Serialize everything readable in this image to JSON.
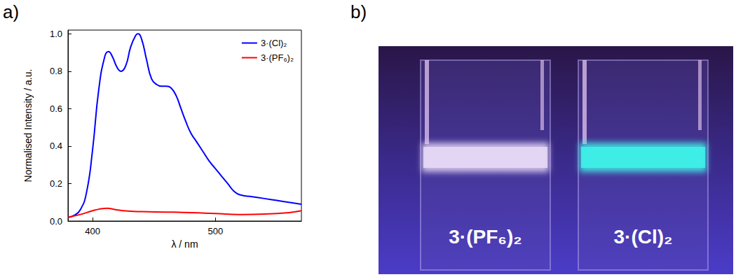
{
  "chart_data": {
    "type": "line",
    "panel_label": "a)",
    "x_label": "λ / nm",
    "y_label": "Normalised Intensity / a.u.",
    "xlim": [
      380,
      570
    ],
    "xticks": [
      400,
      500
    ],
    "ylim": [
      0,
      1.02
    ],
    "yticks": [
      {
        "value": 0,
        "label": "0.0"
      },
      {
        "value": 0.2,
        "label": "0.2"
      },
      {
        "value": 0.4,
        "label": "0.4"
      },
      {
        "value": 0.6,
        "label": "0.6"
      },
      {
        "value": 0.8,
        "label": "0.8"
      },
      {
        "value": 1,
        "label": "1.0"
      }
    ],
    "grid": false,
    "legend": "upper right",
    "series": [
      {
        "name": "3·(Cl)₂",
        "color": "#0000ff",
        "x": [
          380,
          385,
          390,
          395,
          400,
          405,
          410,
          413,
          416,
          420,
          423,
          427,
          431,
          435,
          437,
          440,
          444,
          448,
          452,
          456,
          460,
          464,
          468,
          472,
          476,
          480,
          485,
          490,
          495,
          500,
          505,
          510,
          515,
          520,
          530,
          540,
          550,
          560,
          570
        ],
        "values": [
          0.02,
          0.03,
          0.06,
          0.15,
          0.38,
          0.7,
          0.88,
          0.905,
          0.88,
          0.82,
          0.8,
          0.83,
          0.93,
          0.99,
          1.0,
          0.97,
          0.86,
          0.76,
          0.73,
          0.72,
          0.72,
          0.71,
          0.67,
          0.6,
          0.53,
          0.47,
          0.42,
          0.37,
          0.32,
          0.28,
          0.24,
          0.2,
          0.16,
          0.14,
          0.13,
          0.12,
          0.11,
          0.1,
          0.09
        ]
      },
      {
        "name": "3·(PF₆)₂",
        "color": "#ff0000",
        "x": [
          380,
          390,
          400,
          405,
          412,
          418,
          425,
          440,
          460,
          480,
          500,
          520,
          540,
          560,
          570
        ],
        "values": [
          0.02,
          0.035,
          0.055,
          0.063,
          0.068,
          0.062,
          0.055,
          0.05,
          0.048,
          0.045,
          0.04,
          0.035,
          0.037,
          0.045,
          0.055
        ]
      }
    ]
  },
  "photo": {
    "panel_label": "b)",
    "vials": [
      {
        "label": "3·(PF₆)₂",
        "color": "#e6d8f5"
      },
      {
        "label": "3·(Cl)₂",
        "color": "#3ff0e8"
      }
    ]
  }
}
